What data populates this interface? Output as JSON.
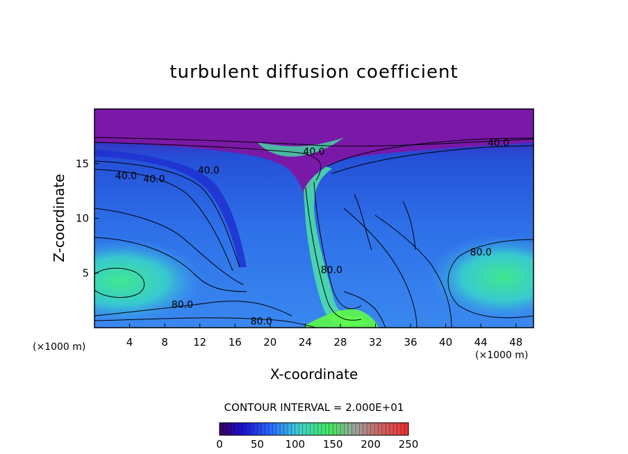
{
  "chart_data": {
    "type": "heatmap",
    "title": "turbulent diffusion coefficient",
    "xlabel": "X-coordinate",
    "ylabel": "Z-coordinate",
    "x_unit": "(×1000 m)",
    "y_unit": "(×1000 m)",
    "xlim": [
      0,
      50
    ],
    "ylim": [
      0,
      20
    ],
    "x_ticks": [
      4,
      8,
      12,
      16,
      20,
      24,
      28,
      32,
      36,
      40,
      44,
      48
    ],
    "y_ticks": [
      5,
      10,
      15
    ],
    "contour_interval_text": "CONTOUR INTERVAL = 2.000E+01",
    "contour_labels": [
      {
        "text": "40.0",
        "x": 3.6,
        "z": 13.6
      },
      {
        "text": "40.0",
        "x": 6.8,
        "z": 13.3
      },
      {
        "text": "40.0",
        "x": 13.0,
        "z": 14.1
      },
      {
        "text": "40.0",
        "x": 25.0,
        "z": 15.8
      },
      {
        "text": "40.0",
        "x": 46.0,
        "z": 16.6
      },
      {
        "text": "80.0",
        "x": 27.0,
        "z": 5.0
      },
      {
        "text": "80.0",
        "x": 44.0,
        "z": 6.6
      },
      {
        "text": "80.0",
        "x": 10.0,
        "z": 1.8
      },
      {
        "text": "80.0",
        "x": 19.0,
        "z": 0.3
      }
    ],
    "colorbar": {
      "min": 0,
      "max": 250,
      "ticks": [
        0,
        50,
        100,
        150,
        200,
        250
      ]
    },
    "colors": {
      "top_layer": "#7a18a8",
      "low": "#2a50e0",
      "mid": "#3aa0ff",
      "high": "#40e890",
      "peak": "#60ff40"
    }
  }
}
